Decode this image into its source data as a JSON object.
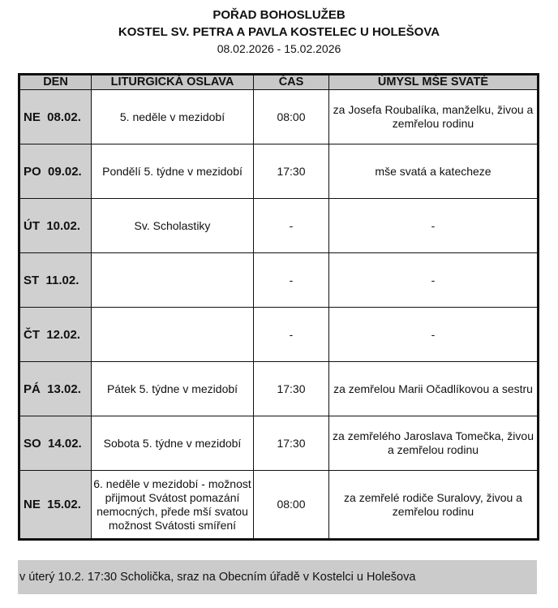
{
  "title": "POŘAD BOHOSLUŽEB",
  "subtitle": "KOSTEL SV. PETRA A PAVLA KOSTELEC U HOLEŠOVA",
  "date_range": "08.02.2026 - 15.02.2026",
  "columns": [
    "DEN",
    "LITURGICKÁ OSLAVA",
    "ČAS",
    "ÚMYSL MŠE SVATÉ"
  ],
  "rows": [
    {
      "day": "NE  08.02.",
      "celebration": "5. neděle v mezidobí",
      "time": "08:00",
      "intention": "za Josefa Roubalíka, manželku, živou a zemřelou rodinu"
    },
    {
      "day": "PO  09.02.",
      "celebration": "Pondělí 5. týdne v mezidobí",
      "time": "17:30",
      "intention": "mše svatá a katecheze"
    },
    {
      "day": "ÚT  10.02.",
      "celebration": "Sv. Scholastiky",
      "time": "-",
      "intention": "-"
    },
    {
      "day": "ST  11.02.",
      "celebration": "",
      "time": "-",
      "intention": "-"
    },
    {
      "day": "ČT  12.02.",
      "celebration": "",
      "time": "-",
      "intention": "-"
    },
    {
      "day": "PÁ  13.02.",
      "celebration": "Pátek 5. týdne v mezidobí",
      "time": "17:30",
      "intention": "za zemřelou Marii Očadlíkovou a sestru"
    },
    {
      "day": "SO  14.02.",
      "celebration": "Sobota 5. týdne v mezidobí",
      "time": "17:30",
      "intention": "za zemřelého Jaroslava Tomečka, živou a zemřelou rodinu"
    },
    {
      "day": "NE  15.02.",
      "celebration": "6. neděle v mezidobí - možnost přijmout Svátost pomazání nemocných, přede mší svatou možnost Svátosti smíření",
      "time": "08:00",
      "intention": "za zemřelé rodiče Suralovy, živou a zemřelou rodinu"
    }
  ],
  "note": "v úterý 10.2. 17:30 Scholička, sraz na Obecním úřadě v Kostelci u Holešova"
}
